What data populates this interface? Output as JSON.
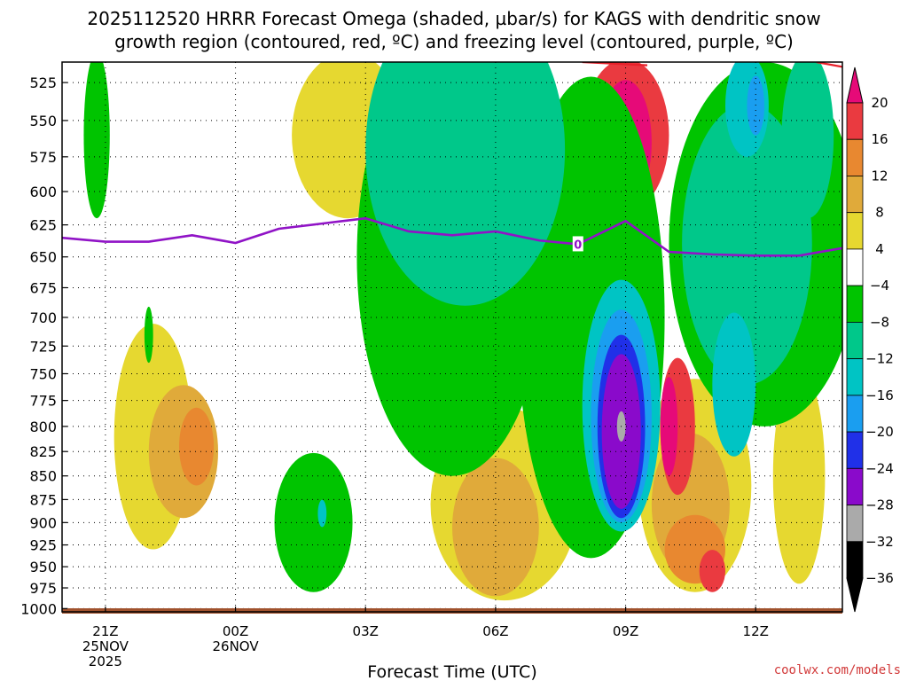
{
  "title": {
    "line1": "2025112520 HRRR Forecast Omega (shaded, µbar/s) for KAGS with dendritic snow",
    "line2": "growth region (contoured, red, ºC) and freezing level (contoured, purple, ºC)"
  },
  "credit": "coolwx.com/models",
  "chart_data": {
    "type": "area",
    "xlabel": "Forecast Time (UTC)",
    "x_ticks": [
      {
        "hour": -3,
        "lines": [
          "21Z",
          "25NOV",
          "2025"
        ]
      },
      {
        "hour": 0,
        "lines": [
          "00Z",
          "26NOV"
        ]
      },
      {
        "hour": 3,
        "lines": [
          "03Z"
        ]
      },
      {
        "hour": 6,
        "lines": [
          "06Z"
        ]
      },
      {
        "hour": 9,
        "lines": [
          "09Z"
        ]
      },
      {
        "hour": 12,
        "lines": [
          "12Z"
        ]
      }
    ],
    "xlim": [
      -4,
      14
    ],
    "y_levels_mb": [
      525,
      550,
      575,
      600,
      625,
      650,
      675,
      700,
      725,
      750,
      775,
      800,
      825,
      850,
      875,
      900,
      925,
      950,
      975,
      1000
    ],
    "ylim_mb": [
      512,
      1004
    ],
    "y_scale": "log-pressure",
    "grid": true,
    "colorbar": {
      "labels": [
        "20",
        "16",
        "12",
        "8",
        "4",
        "−4",
        "−8",
        "−12",
        "−16",
        "−20",
        "−24",
        "−28",
        "−32",
        "−36"
      ],
      "colors": [
        "#ffffff",
        "#e6d830",
        "#e0aa3a",
        "#e88830",
        "#ea3a40",
        "#e60a78",
        "#00c400",
        "#00c88a",
        "#00c4c4",
        "#1a9ef0",
        "#2030e8",
        "#8a0acb",
        "#aaaaaa",
        "#000000"
      ]
    },
    "omega_fields": [
      {
        "color": "#e6d830",
        "value_range": [
          4,
          8
        ],
        "regions": [
          {
            "hour": -1.9,
            "p": 810,
            "dh": 0.9,
            "dp": 120
          },
          {
            "hour": 2.6,
            "p": 560,
            "dh": 1.3,
            "dp": 60
          },
          {
            "hour": 6.2,
            "p": 880,
            "dh": 1.7,
            "dp": 110
          },
          {
            "hour": 10.6,
            "p": 860,
            "dh": 1.3,
            "dp": 120
          },
          {
            "hour": 13.0,
            "p": 850,
            "dh": 0.6,
            "dp": 120
          }
        ]
      },
      {
        "color": "#e0aa3a",
        "value_range": [
          8,
          12
        ],
        "regions": [
          {
            "hour": -1.2,
            "p": 825,
            "dh": 0.8,
            "dp": 70
          },
          {
            "hour": 6.0,
            "p": 905,
            "dh": 1.0,
            "dp": 80
          },
          {
            "hour": 10.5,
            "p": 880,
            "dh": 0.9,
            "dp": 80
          }
        ]
      },
      {
        "color": "#e88830",
        "value_range": [
          12,
          16
        ],
        "regions": [
          {
            "hour": -0.9,
            "p": 820,
            "dh": 0.4,
            "dp": 40
          },
          {
            "hour": 10.6,
            "p": 930,
            "dh": 0.7,
            "dp": 40
          }
        ]
      },
      {
        "color": "#ea3a40",
        "value_range": [
          16,
          20
        ],
        "regions": [
          {
            "hour": 9.0,
            "p": 560,
            "dh": 1.0,
            "dp": 55
          },
          {
            "hour": 10.2,
            "p": 800,
            "dh": 0.4,
            "dp": 70
          },
          {
            "hour": 11.0,
            "p": 955,
            "dh": 0.3,
            "dp": 25
          }
        ]
      },
      {
        "color": "#e60a78",
        "value_range": [
          20,
          99
        ],
        "regions": [
          {
            "hour": 9.0,
            "p": 565,
            "dh": 0.6,
            "dp": 45
          },
          {
            "hour": 10.0,
            "p": 800,
            "dh": 0.2,
            "dp": 50
          }
        ]
      },
      {
        "color": "#00c400",
        "value_range": [
          -8,
          -4
        ],
        "regions": [
          {
            "hour": -3.2,
            "p": 560,
            "dh": 0.3,
            "dp": 60
          },
          {
            "hour": -2.0,
            "p": 715,
            "dh": 0.1,
            "dp": 25
          },
          {
            "hour": 1.8,
            "p": 900,
            "dh": 0.9,
            "dp": 80
          },
          {
            "hour": 5.0,
            "p": 650,
            "dh": 2.2,
            "dp": 200
          },
          {
            "hour": 8.2,
            "p": 700,
            "dh": 1.7,
            "dp": 240
          },
          {
            "hour": 12.2,
            "p": 640,
            "dh": 2.2,
            "dp": 160
          }
        ]
      },
      {
        "color": "#00c88a",
        "value_range": [
          -12,
          -8
        ],
        "regions": [
          {
            "hour": 5.3,
            "p": 570,
            "dh": 2.3,
            "dp": 120
          },
          {
            "hour": 11.8,
            "p": 640,
            "dh": 1.5,
            "dp": 120
          },
          {
            "hour": 13.2,
            "p": 560,
            "dh": 0.6,
            "dp": 60
          }
        ]
      },
      {
        "color": "#00c4c4",
        "value_range": [
          -16,
          -12
        ],
        "regions": [
          {
            "hour": 2.0,
            "p": 890,
            "dh": 0.1,
            "dp": 15
          },
          {
            "hour": 8.9,
            "p": 780,
            "dh": 0.9,
            "dp": 130
          },
          {
            "hour": 11.8,
            "p": 540,
            "dh": 0.5,
            "dp": 35
          },
          {
            "hour": 11.5,
            "p": 760,
            "dh": 0.5,
            "dp": 70
          }
        ]
      },
      {
        "color": "#1a9ef0",
        "value_range": [
          -20,
          -16
        ],
        "regions": [
          {
            "hour": 8.9,
            "p": 790,
            "dh": 0.7,
            "dp": 110
          },
          {
            "hour": 12.0,
            "p": 540,
            "dh": 0.2,
            "dp": 20
          }
        ]
      },
      {
        "color": "#2030e8",
        "value_range": [
          -24,
          -20
        ],
        "regions": [
          {
            "hour": 8.9,
            "p": 800,
            "dh": 0.55,
            "dp": 95
          }
        ]
      },
      {
        "color": "#8a0acb",
        "value_range": [
          -28,
          -24
        ],
        "regions": [
          {
            "hour": 8.9,
            "p": 805,
            "dh": 0.45,
            "dp": 80
          }
        ]
      },
      {
        "color": "#aaaaaa",
        "value_range": [
          -36,
          -32
        ],
        "regions": [
          {
            "hour": 8.9,
            "p": 800,
            "dh": 0.1,
            "dp": 15
          }
        ]
      }
    ],
    "freezing_level": {
      "label": "0",
      "color": "#9013c6",
      "label_hour": 7.9,
      "points": [
        {
          "hour": -4.0,
          "p": 635
        },
        {
          "hour": -3.0,
          "p": 638
        },
        {
          "hour": -2.0,
          "p": 638
        },
        {
          "hour": -1.0,
          "p": 633
        },
        {
          "hour": 0.0,
          "p": 639
        },
        {
          "hour": 1.0,
          "p": 628
        },
        {
          "hour": 2.0,
          "p": 624
        },
        {
          "hour": 3.0,
          "p": 620
        },
        {
          "hour": 4.0,
          "p": 630
        },
        {
          "hour": 5.0,
          "p": 633
        },
        {
          "hour": 6.0,
          "p": 630
        },
        {
          "hour": 7.0,
          "p": 637
        },
        {
          "hour": 7.9,
          "p": 640
        },
        {
          "hour": 9.0,
          "p": 622
        },
        {
          "hour": 10.0,
          "p": 646
        },
        {
          "hour": 11.0,
          "p": 648
        },
        {
          "hour": 12.0,
          "p": 649
        },
        {
          "hour": 13.0,
          "p": 649
        },
        {
          "hour": 14.0,
          "p": 643
        }
      ]
    },
    "dgz_contours": [
      {
        "color": "#e8202a",
        "points": [
          {
            "hour": 8.0,
            "p": 512
          },
          {
            "hour": 9.5,
            "p": 514
          }
        ]
      },
      {
        "color": "#e8202a",
        "points": [
          {
            "hour": 13.4,
            "p": 512
          },
          {
            "hour": 14.0,
            "p": 515
          }
        ]
      }
    ],
    "terrain_color": "#a0522d"
  }
}
